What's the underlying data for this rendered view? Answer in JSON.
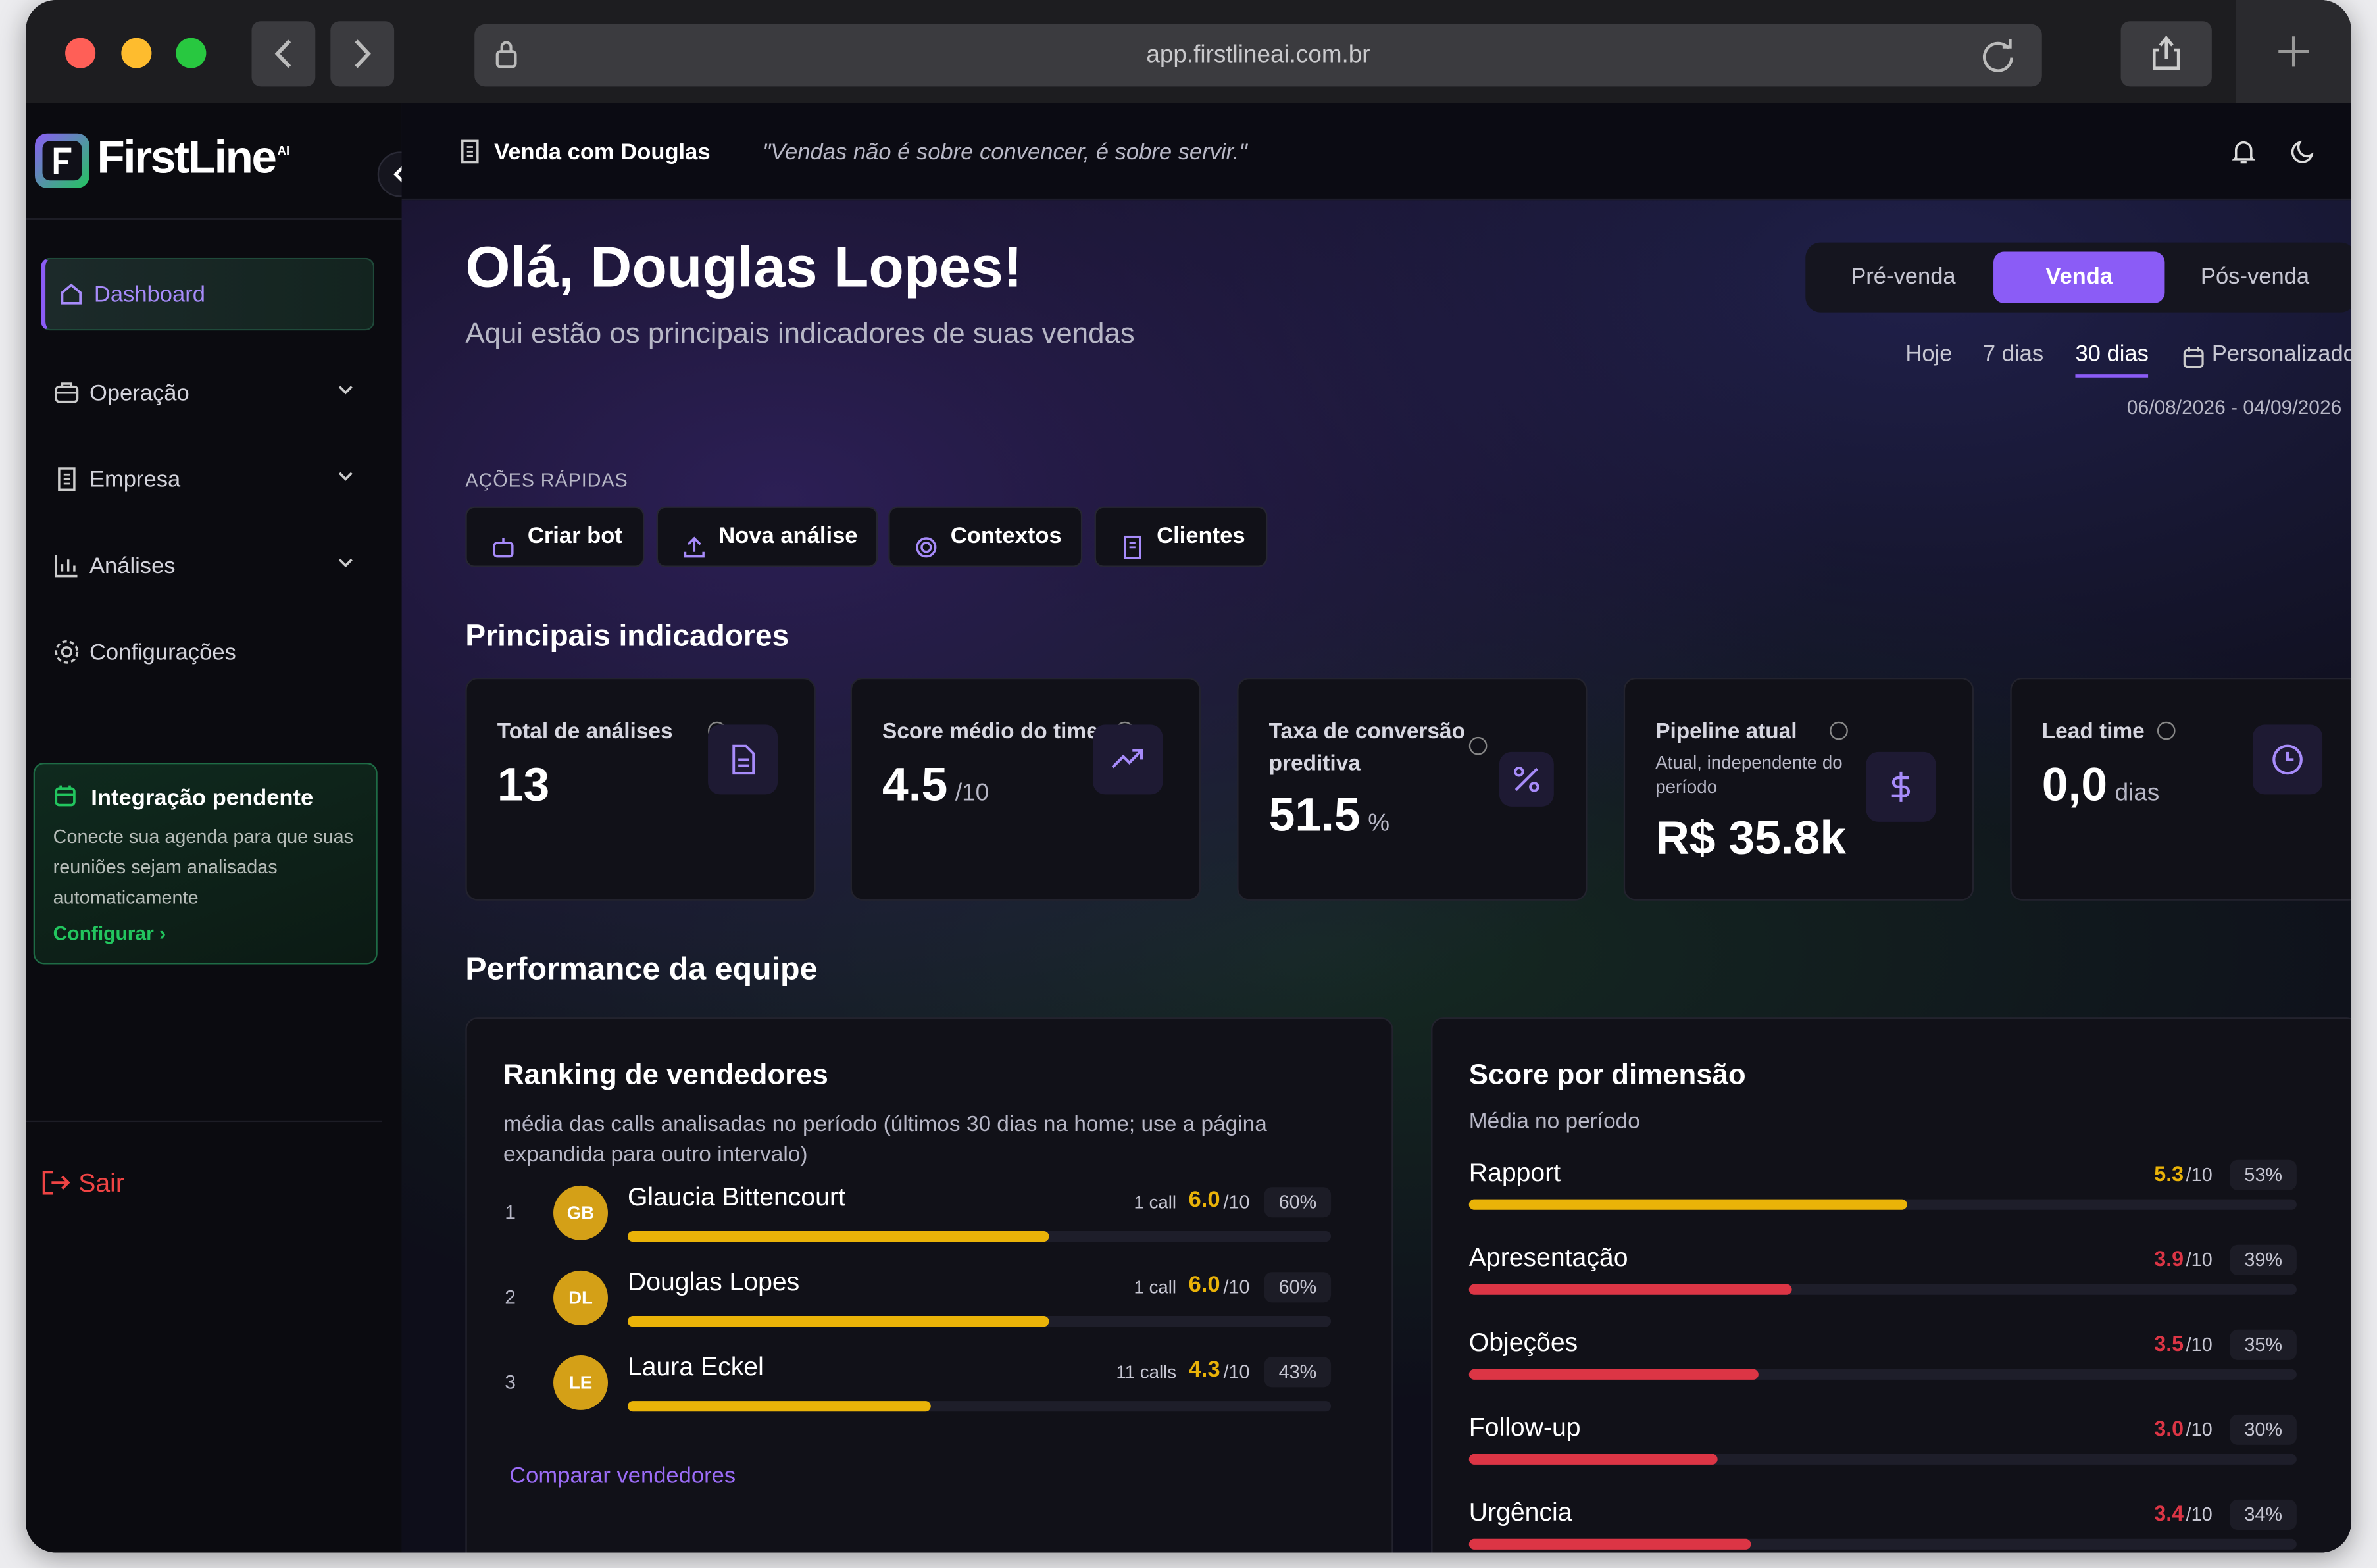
{
  "browser": {
    "url": "app.firstlineai.com.br"
  },
  "sidebar": {
    "brand": "FirstLine",
    "brand_sup": "AI",
    "nav": [
      "Dashboard",
      "Operação",
      "Empresa",
      "Análises",
      "Configurações"
    ],
    "integration": {
      "title": "Integração pendente",
      "text": "Conecte sua agenda para que suas reuniões sejam analisadas automaticamente",
      "link": "Configurar"
    },
    "logout": "Sair"
  },
  "header": {
    "workspace": "Venda com Douglas",
    "quote": "\"Vendas não é sobre convencer, é sobre servir.\""
  },
  "hero": {
    "title": "Olá, Douglas Lopes!",
    "subtitle": "Aqui estão os principais indicadores de suas vendas",
    "tabs": [
      "Pré-venda",
      "Venda",
      "Pós-venda"
    ],
    "periods": [
      "Hoje",
      "7 dias",
      "30 dias",
      "Personalizado"
    ],
    "date_range": "06/08/2026 - 04/09/2026"
  },
  "quick_actions": {
    "label": "AÇÕES RÁPIDAS",
    "items": [
      "Criar bot",
      "Nova análise",
      "Contextos",
      "Clientes"
    ]
  },
  "indicators": {
    "title": "Principais indicadores",
    "cards": [
      {
        "label": "Total de análises",
        "value": "13"
      },
      {
        "label": "Score médio do time",
        "value": "4.5",
        "unit": "/10"
      },
      {
        "label": "Taxa de conversão preditiva",
        "value": "51.5",
        "unit": "%"
      },
      {
        "label": "Pipeline atual",
        "note": "Atual, independente do período",
        "value": "R$ 35.8k"
      },
      {
        "label": "Lead time",
        "value": "0,0",
        "unit": "dias"
      }
    ]
  },
  "performance": {
    "title": "Performance da equipe",
    "ranking": {
      "title": "Ranking de vendedores",
      "subtitle": "média das calls analisadas no período (últimos 30 dias na home; use a página expandida para outro intervalo)",
      "rows": [
        {
          "rank": "1",
          "initials": "GB",
          "name": "Glaucia Bittencourt",
          "calls": "1 call",
          "score": "6.0",
          "max": "/10",
          "pct": {
            "value": 60,
            "label": "60%"
          }
        },
        {
          "rank": "2",
          "initials": "DL",
          "name": "Douglas Lopes",
          "calls": "1 call",
          "score": "6.0",
          "max": "/10",
          "pct": {
            "value": 60,
            "label": "60%"
          }
        },
        {
          "rank": "3",
          "initials": "LE",
          "name": "Laura Eckel",
          "calls": "11 calls",
          "score": "4.3",
          "max": "/10",
          "pct": {
            "value": 43,
            "label": "43%"
          }
        }
      ],
      "link": "Comparar vendedores"
    },
    "dimensions": {
      "title": "Score por dimensão",
      "subtitle": "Média no período",
      "rows": [
        {
          "name": "Rapport",
          "score": "5.3",
          "max": "/10",
          "pct": {
            "value": 53,
            "label": "53%"
          },
          "color": "#eab308"
        },
        {
          "name": "Apresentação",
          "score": "3.9",
          "max": "/10",
          "pct": {
            "value": 39,
            "label": "39%"
          },
          "color": "#dc3545"
        },
        {
          "name": "Objeções",
          "score": "3.5",
          "max": "/10",
          "pct": {
            "value": 35,
            "label": "35%"
          },
          "color": "#dc3545"
        },
        {
          "name": "Follow-up",
          "score": "3.0",
          "max": "/10",
          "pct": {
            "value": 30,
            "label": "30%"
          },
          "color": "#dc3545"
        },
        {
          "name": "Urgência",
          "score": "3.4",
          "max": "/10",
          "pct": {
            "value": 34,
            "label": "34%"
          },
          "color": "#dc3545"
        }
      ]
    }
  }
}
